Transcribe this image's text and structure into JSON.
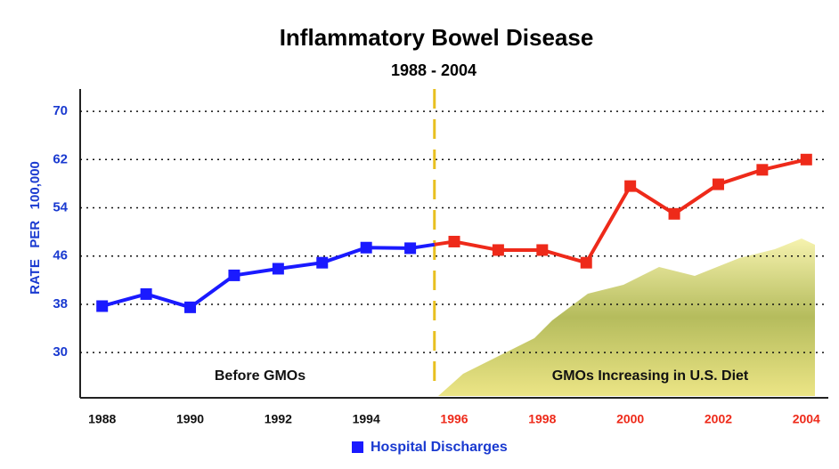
{
  "chart_data": {
    "type": "line",
    "title": "Inflammatory Bowel Disease",
    "subtitle": "1988 - 2004",
    "y_label": "RATE   PER   100,000",
    "x": [
      1988,
      1989,
      1990,
      1991,
      1992,
      1993,
      1994,
      1995,
      1996,
      1997,
      1998,
      1999,
      2000,
      2001,
      2002,
      2003,
      2004
    ],
    "series": [
      {
        "name": "Hospital Discharges",
        "color": "#1a1aff",
        "values": [
          37.7,
          39.7,
          37.5,
          42.8,
          43.9,
          44.9,
          47.4,
          47.3,
          null,
          null,
          null,
          null,
          null,
          null,
          null,
          null,
          null
        ]
      },
      {
        "color": "#ee2a1a",
        "values": [
          null,
          null,
          null,
          null,
          null,
          null,
          null,
          null,
          48.4,
          47.0,
          47.0,
          44.9,
          57.6,
          53.0,
          57.9,
          60.3,
          62.0
        ]
      }
    ],
    "divider": 1995.55,
    "xlim": [
      1987.5,
      2004.5
    ],
    "ylim": [
      22.5,
      73.7
    ],
    "xticks": [
      1988,
      1990,
      1992,
      1994,
      1996,
      1998,
      2000,
      2002,
      2004
    ],
    "yticks": [
      30,
      38,
      46,
      54,
      62,
      70
    ],
    "grid": true,
    "annotations": [
      "Before GMOs",
      "GMOs Increasing in U.S. Diet"
    ]
  }
}
